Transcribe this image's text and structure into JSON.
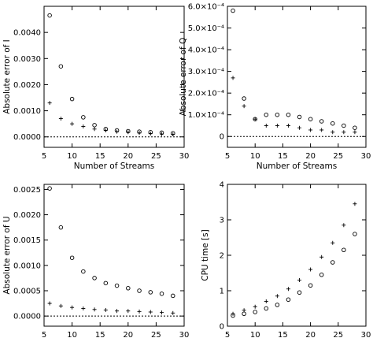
{
  "chart_data": [
    {
      "type": "scatter",
      "title": "",
      "xlabel": "Number of Streams",
      "ylabel": "Absolute error of I",
      "xlim": [
        5,
        30
      ],
      "ylim": [
        -0.0004,
        0.005
      ],
      "xticks": [
        5,
        10,
        15,
        20,
        25,
        30
      ],
      "xtick_labels": [
        "5",
        "10",
        "15",
        "20",
        "25",
        "30"
      ],
      "yticks": [
        0.0,
        0.001,
        0.002,
        0.003,
        0.004
      ],
      "ytick_labels": [
        "0.0000",
        "0.0010",
        "0.0020",
        "0.0030",
        "0.0040"
      ],
      "zero_line": true,
      "series": [
        {
          "marker": "circle",
          "x": [
            6,
            8,
            10,
            12,
            14,
            16,
            18,
            20,
            22,
            24,
            26,
            28
          ],
          "y": [
            0.00465,
            0.0027,
            0.00145,
            0.00075,
            0.00045,
            0.0003,
            0.00025,
            0.00022,
            0.0002,
            0.00018,
            0.00016,
            0.00014
          ]
        },
        {
          "marker": "plus",
          "x": [
            6,
            8,
            10,
            12,
            14,
            16,
            18,
            20,
            22,
            24,
            26,
            28
          ],
          "y": [
            0.0013,
            0.0007,
            0.0005,
            0.0004,
            0.0003,
            0.00025,
            0.0002,
            0.00018,
            0.00015,
            0.00013,
            0.00011,
            0.0001
          ]
        }
      ]
    },
    {
      "type": "scatter",
      "title": "",
      "xlabel": "Number of Streams",
      "ylabel": "Absolute error of Q",
      "xlim": [
        5,
        30
      ],
      "ylim": [
        -5e-05,
        0.0006
      ],
      "xticks": [
        5,
        10,
        15,
        20,
        25,
        30
      ],
      "xtick_labels": [
        "5",
        "10",
        "15",
        "20",
        "25",
        "30"
      ],
      "yticks": [
        0,
        0.0001,
        0.0002,
        0.0003,
        0.0004,
        0.0005,
        0.0006
      ],
      "ytick_labels": [
        "0",
        "1.0×10⁻⁴",
        "2.0×10⁻⁴",
        "3.0×10⁻⁴",
        "4.0×10⁻⁴",
        "5.0×10⁻⁴",
        "6.0×10⁻⁴"
      ],
      "zero_line": true,
      "series": [
        {
          "marker": "circle",
          "x": [
            6,
            8,
            10,
            12,
            14,
            16,
            18,
            20,
            22,
            24,
            26,
            28
          ],
          "y": [
            0.00058,
            0.000175,
            8e-05,
            0.0001,
            0.0001,
            0.0001,
            9e-05,
            8e-05,
            7e-05,
            6e-05,
            5e-05,
            4e-05
          ]
        },
        {
          "marker": "plus",
          "x": [
            6,
            8,
            10,
            12,
            14,
            16,
            18,
            20,
            22,
            24,
            26,
            28
          ],
          "y": [
            0.00027,
            0.00014,
            8e-05,
            5e-05,
            5e-05,
            5e-05,
            4e-05,
            3e-05,
            3e-05,
            2e-05,
            2e-05,
            2e-05
          ]
        }
      ]
    },
    {
      "type": "scatter",
      "title": "",
      "xlabel": "Number of Streams",
      "ylabel": "Absolute error of U",
      "xlim": [
        5,
        30
      ],
      "ylim": [
        -0.0002,
        0.0026
      ],
      "xticks": [
        5,
        10,
        15,
        20,
        25,
        30
      ],
      "xtick_labels": [
        "5",
        "10",
        "15",
        "20",
        "25",
        "30"
      ],
      "yticks": [
        0.0,
        0.0005,
        0.001,
        0.0015,
        0.002,
        0.0025
      ],
      "ytick_labels": [
        "0.0000",
        "0.0005",
        "0.0010",
        "0.0015",
        "0.0020",
        "0.0025"
      ],
      "zero_line": true,
      "series": [
        {
          "marker": "circle",
          "x": [
            6,
            8,
            10,
            12,
            14,
            16,
            18,
            20,
            22,
            24,
            26,
            28
          ],
          "y": [
            0.00252,
            0.00175,
            0.00115,
            0.00088,
            0.00075,
            0.00065,
            0.0006,
            0.00055,
            0.0005,
            0.00047,
            0.00044,
            0.0004
          ]
        },
        {
          "marker": "plus",
          "x": [
            6,
            8,
            10,
            12,
            14,
            16,
            18,
            20,
            22,
            24,
            26,
            28
          ],
          "y": [
            0.00025,
            0.0002,
            0.00017,
            0.00015,
            0.00013,
            0.00012,
            0.0001,
            0.0001,
            9e-05,
            8e-05,
            7e-05,
            6e-05
          ]
        }
      ]
    },
    {
      "type": "scatter",
      "title": "",
      "xlabel": "Number of Streams",
      "ylabel": "CPU time [s]",
      "xlim": [
        5,
        30
      ],
      "ylim": [
        0,
        4
      ],
      "xticks": [
        5,
        10,
        15,
        20,
        25,
        30
      ],
      "xtick_labels": [
        "5",
        "10",
        "15",
        "20",
        "25",
        "30"
      ],
      "yticks": [
        0,
        1,
        2,
        3,
        4
      ],
      "ytick_labels": [
        "0",
        "1",
        "2",
        "3",
        "4"
      ],
      "zero_line": false,
      "series": [
        {
          "marker": "circle",
          "x": [
            6,
            8,
            10,
            12,
            14,
            16,
            18,
            20,
            22,
            24,
            26,
            28
          ],
          "y": [
            0.3,
            0.35,
            0.4,
            0.5,
            0.6,
            0.75,
            0.95,
            1.15,
            1.45,
            1.8,
            2.15,
            2.6
          ]
        },
        {
          "marker": "plus",
          "x": [
            6,
            8,
            10,
            12,
            14,
            16,
            18,
            20,
            22,
            24,
            26,
            28
          ],
          "y": [
            0.35,
            0.45,
            0.55,
            0.7,
            0.85,
            1.05,
            1.3,
            1.6,
            1.95,
            2.35,
            2.85,
            3.45
          ]
        }
      ]
    }
  ]
}
